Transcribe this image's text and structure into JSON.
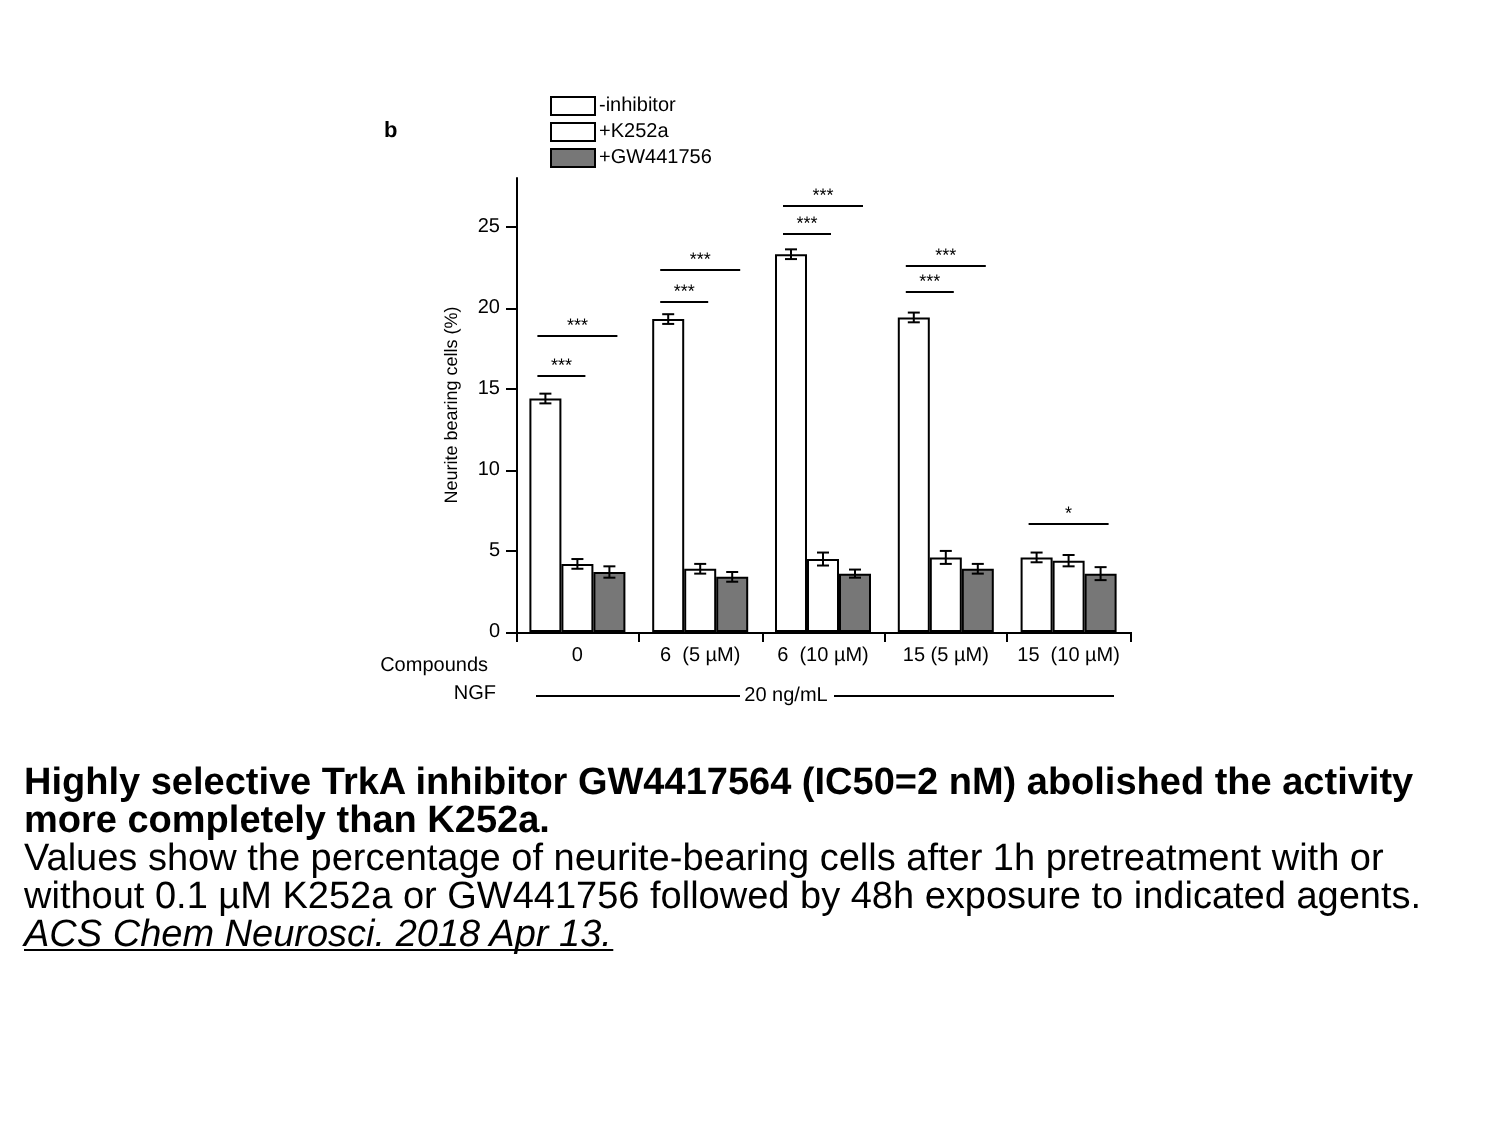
{
  "chart_data": {
    "type": "bar",
    "title": "Highly selective TrkA inhibitor GW4417564 (IC50=2 nM) abolished the activity more completely than K252a.",
    "subtitle": "Values show the percentage of neurite-bearing cells after 1h pretreatment with or without 0.1 µM K252a or GW441756 followed by 48h exposure to indicated agents.",
    "xlabel": "Compounds",
    "ylabel": "Neurite bearing cells (%)",
    "categories": [
      "0",
      "6  (5 µM)",
      "6  (10 µM)",
      "15 (5 µM)",
      "15  (10 µM)"
    ],
    "series": [
      {
        "name": "-inhibitor",
        "color": "#ffffff",
        "values": [
          14.4,
          19.3,
          23.3,
          19.4,
          4.6
        ],
        "errors": [
          0.3,
          0.3,
          0.3,
          0.3,
          0.3
        ]
      },
      {
        "name": "+K252a",
        "color": "#ffffff",
        "values": [
          4.2,
          3.9,
          4.5,
          4.6,
          4.4
        ],
        "errors": [
          0.3,
          0.3,
          0.4,
          0.4,
          0.35
        ]
      },
      {
        "name": "+GW441756",
        "color": "#777777",
        "values": [
          3.7,
          3.4,
          3.6,
          3.9,
          3.6
        ],
        "errors": [
          0.35,
          0.3,
          0.25,
          0.3,
          0.4
        ]
      }
    ],
    "ylim": [
      0,
      28
    ],
    "yticks": [
      0,
      5,
      10,
      15,
      20,
      25
    ],
    "grid": false,
    "legend": "top left",
    "annotations": [
      "b",
      "***",
      "***",
      "***",
      "***",
      "***",
      "***",
      "***",
      "***",
      "*",
      "NGF",
      "20 ng/mL",
      "ACS Chem Neurosci. 2018 Apr 13."
    ]
  }
}
